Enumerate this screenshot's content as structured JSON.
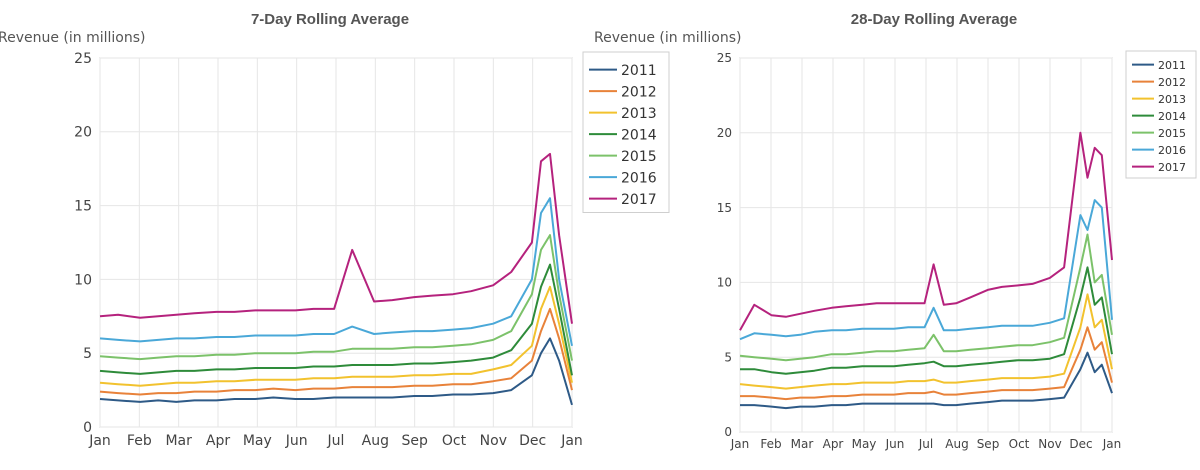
{
  "chart_data": [
    {
      "type": "line",
      "title": "7-Day Rolling Average",
      "xlabel": "",
      "ylabel": "Revenue (in millions)",
      "ylim": [
        0,
        25
      ],
      "yticks": [
        0,
        5,
        10,
        15,
        20,
        25
      ],
      "xticks": [
        "Jan",
        "Feb",
        "Mar",
        "Apr",
        "May",
        "Jun",
        "Jul",
        "Aug",
        "Sep",
        "Oct",
        "Nov",
        "Dec",
        "Jan"
      ],
      "grid": true,
      "legend": "right",
      "x_dates": [
        "Jan 1",
        "Jan 15",
        "Feb 1",
        "Feb 15",
        "Mar 1",
        "Mar 15",
        "Apr 1",
        "Apr 15",
        "May 1",
        "May 15",
        "Jun 1",
        "Jun 15",
        "Jul 1",
        "Jul 15",
        "Aug 1",
        "Aug 15",
        "Sep 1",
        "Sep 15",
        "Oct 1",
        "Oct 15",
        "Nov 1",
        "Nov 15",
        "Dec 1",
        "Dec 8",
        "Dec 15",
        "Dec 22",
        "Dec 31"
      ],
      "series": [
        {
          "name": "2011",
          "color": "#2e5a87",
          "values": [
            1.9,
            1.8,
            1.7,
            1.8,
            1.7,
            1.8,
            1.8,
            1.9,
            1.9,
            2.0,
            1.9,
            1.9,
            2.0,
            2.0,
            2.0,
            2.0,
            2.1,
            2.1,
            2.2,
            2.2,
            2.3,
            2.5,
            3.5,
            5.0,
            6.0,
            4.5,
            1.5
          ]
        },
        {
          "name": "2012",
          "color": "#e8823a",
          "values": [
            2.4,
            2.3,
            2.2,
            2.3,
            2.3,
            2.4,
            2.4,
            2.5,
            2.5,
            2.6,
            2.5,
            2.6,
            2.6,
            2.7,
            2.7,
            2.7,
            2.8,
            2.8,
            2.9,
            2.9,
            3.1,
            3.3,
            4.5,
            6.5,
            8.0,
            6.0,
            2.5
          ]
        },
        {
          "name": "2013",
          "color": "#f2c22e",
          "values": [
            3.0,
            2.9,
            2.8,
            2.9,
            3.0,
            3.0,
            3.1,
            3.1,
            3.2,
            3.2,
            3.2,
            3.3,
            3.3,
            3.4,
            3.4,
            3.4,
            3.5,
            3.5,
            3.6,
            3.6,
            3.9,
            4.2,
            5.5,
            8.0,
            9.5,
            7.0,
            3.0
          ]
        },
        {
          "name": "2014",
          "color": "#2e8b3a",
          "values": [
            3.8,
            3.7,
            3.6,
            3.7,
            3.8,
            3.8,
            3.9,
            3.9,
            4.0,
            4.0,
            4.0,
            4.1,
            4.1,
            4.2,
            4.2,
            4.2,
            4.3,
            4.3,
            4.4,
            4.5,
            4.7,
            5.2,
            7.0,
            9.5,
            11.0,
            8.0,
            3.5
          ]
        },
        {
          "name": "2015",
          "color": "#7cc26a",
          "values": [
            4.8,
            4.7,
            4.6,
            4.7,
            4.8,
            4.8,
            4.9,
            4.9,
            5.0,
            5.0,
            5.0,
            5.1,
            5.1,
            5.3,
            5.3,
            5.3,
            5.4,
            5.4,
            5.5,
            5.6,
            5.9,
            6.5,
            9.0,
            12.0,
            13.0,
            9.0,
            4.5
          ]
        },
        {
          "name": "2016",
          "color": "#4aa8d8",
          "values": [
            6.0,
            5.9,
            5.8,
            5.9,
            6.0,
            6.0,
            6.1,
            6.1,
            6.2,
            6.2,
            6.2,
            6.3,
            6.3,
            6.8,
            6.3,
            6.4,
            6.5,
            6.5,
            6.6,
            6.7,
            7.0,
            7.5,
            10.0,
            14.5,
            15.5,
            10.0,
            5.5
          ]
        },
        {
          "name": "2017",
          "color": "#b5227d",
          "values": [
            7.5,
            7.6,
            7.4,
            7.5,
            7.6,
            7.7,
            7.8,
            7.8,
            7.9,
            7.9,
            7.9,
            8.0,
            8.0,
            12.0,
            8.5,
            8.6,
            8.8,
            8.9,
            9.0,
            9.2,
            9.6,
            10.5,
            12.5,
            18.0,
            18.5,
            13.0,
            7.0
          ]
        }
      ]
    },
    {
      "type": "line",
      "title": "28-Day Rolling Average",
      "xlabel": "",
      "ylabel": "Revenue (in millions)",
      "ylim": [
        0,
        25
      ],
      "yticks": [
        0,
        5,
        10,
        15,
        20,
        25
      ],
      "xticks": [
        "Jan",
        "Feb",
        "Mar",
        "Apr",
        "May",
        "Jun",
        "Jul",
        "Aug",
        "Sep",
        "Oct",
        "Nov",
        "Dec",
        "Jan"
      ],
      "grid": true,
      "legend": "right",
      "x_dates": [
        "Jan 1",
        "Jan 15",
        "Feb 1",
        "Feb 15",
        "Mar 1",
        "Mar 15",
        "Apr 1",
        "Apr 15",
        "May 1",
        "May 15",
        "Jun 1",
        "Jun 15",
        "Jul 1",
        "Jul 10",
        "Jul 20",
        "Aug 1",
        "Aug 15",
        "Sep 1",
        "Sep 15",
        "Oct 1",
        "Oct 15",
        "Nov 1",
        "Nov 15",
        "Dec 1",
        "Dec 8",
        "Dec 15",
        "Dec 22",
        "Dec 31"
      ],
      "series": [
        {
          "name": "2011",
          "color": "#2e5a87",
          "values": [
            1.8,
            1.8,
            1.7,
            1.6,
            1.7,
            1.7,
            1.8,
            1.8,
            1.9,
            1.9,
            1.9,
            1.9,
            1.9,
            1.9,
            1.8,
            1.8,
            1.9,
            2.0,
            2.1,
            2.1,
            2.1,
            2.2,
            2.3,
            4.2,
            5.3,
            4.0,
            4.5,
            2.6
          ]
        },
        {
          "name": "2012",
          "color": "#e8823a",
          "values": [
            2.4,
            2.4,
            2.3,
            2.2,
            2.3,
            2.3,
            2.4,
            2.4,
            2.5,
            2.5,
            2.5,
            2.6,
            2.6,
            2.7,
            2.5,
            2.5,
            2.6,
            2.7,
            2.8,
            2.8,
            2.8,
            2.9,
            3.0,
            5.5,
            7.0,
            5.5,
            6.0,
            3.3
          ]
        },
        {
          "name": "2013",
          "color": "#f2c22e",
          "values": [
            3.2,
            3.1,
            3.0,
            2.9,
            3.0,
            3.1,
            3.2,
            3.2,
            3.3,
            3.3,
            3.3,
            3.4,
            3.4,
            3.5,
            3.3,
            3.3,
            3.4,
            3.5,
            3.6,
            3.6,
            3.6,
            3.7,
            3.9,
            7.0,
            9.2,
            7.0,
            7.5,
            4.2
          ]
        },
        {
          "name": "2014",
          "color": "#2e8b3a",
          "values": [
            4.2,
            4.2,
            4.0,
            3.9,
            4.0,
            4.1,
            4.3,
            4.3,
            4.4,
            4.4,
            4.4,
            4.5,
            4.6,
            4.7,
            4.4,
            4.4,
            4.5,
            4.6,
            4.7,
            4.8,
            4.8,
            4.9,
            5.2,
            9.0,
            11.0,
            8.5,
            9.0,
            5.2
          ]
        },
        {
          "name": "2015",
          "color": "#7cc26a",
          "values": [
            5.1,
            5.0,
            4.9,
            4.8,
            4.9,
            5.0,
            5.2,
            5.2,
            5.3,
            5.4,
            5.4,
            5.5,
            5.6,
            6.5,
            5.4,
            5.4,
            5.5,
            5.6,
            5.7,
            5.8,
            5.8,
            6.0,
            6.3,
            11.0,
            13.2,
            10.0,
            10.5,
            6.5
          ]
        },
        {
          "name": "2016",
          "color": "#4aa8d8",
          "values": [
            6.2,
            6.6,
            6.5,
            6.4,
            6.5,
            6.7,
            6.8,
            6.8,
            6.9,
            6.9,
            6.9,
            7.0,
            7.0,
            8.3,
            6.8,
            6.8,
            6.9,
            7.0,
            7.1,
            7.1,
            7.1,
            7.3,
            7.6,
            14.5,
            13.5,
            15.5,
            15.0,
            7.5
          ]
        },
        {
          "name": "2017",
          "color": "#b5227d",
          "values": [
            6.8,
            8.5,
            7.8,
            7.7,
            7.9,
            8.1,
            8.3,
            8.4,
            8.5,
            8.6,
            8.6,
            8.6,
            8.6,
            11.2,
            8.5,
            8.6,
            9.0,
            9.5,
            9.7,
            9.8,
            9.9,
            10.3,
            11.0,
            20.0,
            17.0,
            19.0,
            18.5,
            11.5
          ]
        }
      ]
    }
  ]
}
